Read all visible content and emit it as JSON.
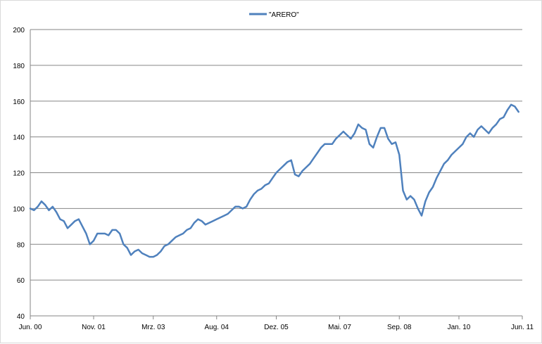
{
  "chart_data": {
    "type": "line",
    "title": "",
    "xlabel": "",
    "ylabel": "",
    "legend_position": "top-center",
    "grid": true,
    "ylim": [
      40,
      200
    ],
    "yticks": [
      40,
      60,
      80,
      100,
      120,
      140,
      160,
      180,
      200
    ],
    "xlim": [
      "2000-06",
      "2011-06"
    ],
    "xticks": [
      {
        "date": "2000-06",
        "label": "Jun. 00"
      },
      {
        "date": "2001-11",
        "label": "Nov. 01"
      },
      {
        "date": "2003-03",
        "label": "Mrz. 03"
      },
      {
        "date": "2004-08",
        "label": "Aug. 04"
      },
      {
        "date": "2005-12",
        "label": "Dez. 05"
      },
      {
        "date": "2007-05",
        "label": "Mai. 07"
      },
      {
        "date": "2008-09",
        "label": "Sep. 08"
      },
      {
        "date": "2010-01",
        "label": "Jan. 10"
      },
      {
        "date": "2011-06",
        "label": "Jun. 11"
      }
    ],
    "series": [
      {
        "name": "\"ARERO\"",
        "color": "#4f81bd",
        "points": [
          [
            "2000-06",
            100
          ],
          [
            "2000-07",
            99
          ],
          [
            "2000-08",
            101
          ],
          [
            "2000-09",
            104
          ],
          [
            "2000-10",
            102
          ],
          [
            "2000-11",
            99
          ],
          [
            "2000-12",
            101
          ],
          [
            "2001-01",
            98
          ],
          [
            "2001-02",
            94
          ],
          [
            "2001-03",
            93
          ],
          [
            "2001-04",
            89
          ],
          [
            "2001-05",
            91
          ],
          [
            "2001-06",
            93
          ],
          [
            "2001-07",
            94
          ],
          [
            "2001-08",
            90
          ],
          [
            "2001-09",
            86
          ],
          [
            "2001-10",
            80
          ],
          [
            "2001-11",
            82
          ],
          [
            "2001-12",
            86
          ],
          [
            "2002-01",
            86
          ],
          [
            "2002-02",
            86
          ],
          [
            "2002-03",
            85
          ],
          [
            "2002-04",
            88
          ],
          [
            "2002-05",
            88
          ],
          [
            "2002-06",
            86
          ],
          [
            "2002-07",
            80
          ],
          [
            "2002-08",
            78
          ],
          [
            "2002-09",
            74
          ],
          [
            "2002-10",
            76
          ],
          [
            "2002-11",
            77
          ],
          [
            "2002-12",
            75
          ],
          [
            "2003-01",
            74
          ],
          [
            "2003-02",
            73
          ],
          [
            "2003-03",
            73
          ],
          [
            "2003-04",
            74
          ],
          [
            "2003-05",
            76
          ],
          [
            "2003-06",
            79
          ],
          [
            "2003-07",
            80
          ],
          [
            "2003-08",
            82
          ],
          [
            "2003-09",
            84
          ],
          [
            "2003-10",
            85
          ],
          [
            "2003-11",
            86
          ],
          [
            "2003-12",
            88
          ],
          [
            "2004-01",
            89
          ],
          [
            "2004-02",
            92
          ],
          [
            "2004-03",
            94
          ],
          [
            "2004-04",
            93
          ],
          [
            "2004-05",
            91
          ],
          [
            "2004-06",
            92
          ],
          [
            "2004-07",
            93
          ],
          [
            "2004-08",
            94
          ],
          [
            "2004-09",
            95
          ],
          [
            "2004-10",
            96
          ],
          [
            "2004-11",
            97
          ],
          [
            "2004-12",
            99
          ],
          [
            "2005-01",
            101
          ],
          [
            "2005-02",
            101
          ],
          [
            "2005-03",
            100
          ],
          [
            "2005-04",
            101
          ],
          [
            "2005-05",
            105
          ],
          [
            "2005-06",
            108
          ],
          [
            "2005-07",
            110
          ],
          [
            "2005-08",
            111
          ],
          [
            "2005-09",
            113
          ],
          [
            "2005-10",
            114
          ],
          [
            "2005-11",
            117
          ],
          [
            "2005-12",
            120
          ],
          [
            "2006-01",
            122
          ],
          [
            "2006-02",
            124
          ],
          [
            "2006-03",
            126
          ],
          [
            "2006-04",
            127
          ],
          [
            "2006-05",
            119
          ],
          [
            "2006-06",
            118
          ],
          [
            "2006-07",
            121
          ],
          [
            "2006-08",
            123
          ],
          [
            "2006-09",
            125
          ],
          [
            "2006-10",
            128
          ],
          [
            "2006-11",
            131
          ],
          [
            "2006-12",
            134
          ],
          [
            "2007-01",
            136
          ],
          [
            "2007-02",
            136
          ],
          [
            "2007-03",
            136
          ],
          [
            "2007-04",
            139
          ],
          [
            "2007-05",
            141
          ],
          [
            "2007-06",
            143
          ],
          [
            "2007-07",
            141
          ],
          [
            "2007-08",
            139
          ],
          [
            "2007-09",
            142
          ],
          [
            "2007-10",
            147
          ],
          [
            "2007-11",
            145
          ],
          [
            "2007-12",
            144
          ],
          [
            "2008-01",
            136
          ],
          [
            "2008-02",
            134
          ],
          [
            "2008-03",
            140
          ],
          [
            "2008-04",
            145
          ],
          [
            "2008-05",
            145
          ],
          [
            "2008-06",
            139
          ],
          [
            "2008-07",
            136
          ],
          [
            "2008-08",
            137
          ],
          [
            "2008-09",
            130
          ],
          [
            "2008-10",
            110
          ],
          [
            "2008-11",
            105
          ],
          [
            "2008-12",
            107
          ],
          [
            "2009-01",
            105
          ],
          [
            "2009-02",
            100
          ],
          [
            "2009-03",
            96
          ],
          [
            "2009-04",
            104
          ],
          [
            "2009-05",
            109
          ],
          [
            "2009-06",
            112
          ],
          [
            "2009-07",
            117
          ],
          [
            "2009-08",
            121
          ],
          [
            "2009-09",
            125
          ],
          [
            "2009-10",
            127
          ],
          [
            "2009-11",
            130
          ],
          [
            "2009-12",
            132
          ],
          [
            "2010-01",
            134
          ],
          [
            "2010-02",
            136
          ],
          [
            "2010-03",
            140
          ],
          [
            "2010-04",
            142
          ],
          [
            "2010-05",
            140
          ],
          [
            "2010-06",
            144
          ],
          [
            "2010-07",
            146
          ],
          [
            "2010-08",
            144
          ],
          [
            "2010-09",
            142
          ],
          [
            "2010-10",
            145
          ],
          [
            "2010-11",
            147
          ],
          [
            "2010-12",
            150
          ],
          [
            "2011-01",
            151
          ],
          [
            "2011-02",
            155
          ],
          [
            "2011-03",
            158
          ],
          [
            "2011-04",
            157
          ],
          [
            "2011-05",
            154
          ]
        ]
      }
    ]
  }
}
